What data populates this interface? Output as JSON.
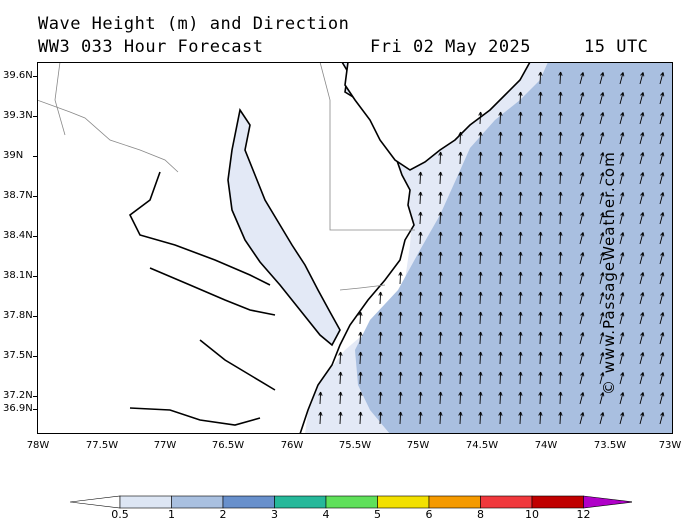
{
  "header": {
    "title": "Wave Height (m) and Direction",
    "model": "WW3 033 Hour Forecast",
    "date": "Fri 02 May 2025",
    "time": "15 UTC"
  },
  "credit": "© www.PassageWeather.com",
  "y_axis": [
    "39.6N",
    "39.3N",
    "39N",
    "38.7N",
    "38.4N",
    "38.1N",
    "37.8N",
    "37.5N",
    "37.2N",
    "36.9N"
  ],
  "x_axis": [
    "78W",
    "77.5W",
    "77W",
    "76.5W",
    "76W",
    "75.5W",
    "75W",
    "74.5W",
    "74W",
    "73.5W",
    "73W"
  ],
  "colorbar": {
    "labels": [
      "0.5",
      "1",
      "2",
      "3",
      "4",
      "5",
      "6",
      "8",
      "10",
      "12"
    ],
    "colors": [
      "#dde6f4",
      "#a9c0e0",
      "#6890cc",
      "#26b89a",
      "#5fe05a",
      "#f2e000",
      "#f59a00",
      "#f0383c",
      "#c00000",
      "#b000c8"
    ]
  },
  "colors": {
    "land": "#ffffff",
    "sea_low": "#e3e9f6",
    "sea_high": "#a9bfe0",
    "arrow": "#000000"
  }
}
